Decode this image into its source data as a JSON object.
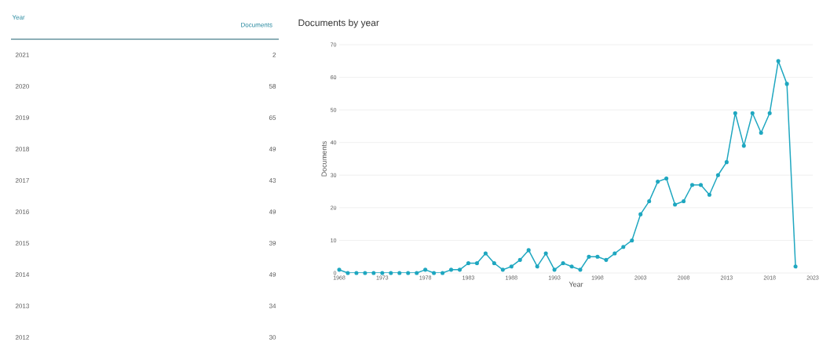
{
  "chart_data": [
    {
      "type": "heatmap",
      "ylabel": "Year",
      "categories": [
        "Documents"
      ],
      "y_categories": [
        "2021",
        "2020",
        "2019",
        "2018",
        "2017",
        "2016",
        "2015",
        "2014",
        "2013",
        "2012"
      ],
      "cells": [
        [
          2
        ],
        [
          58
        ],
        [
          65
        ],
        [
          49
        ],
        [
          43
        ],
        [
          49
        ],
        [
          39
        ],
        [
          49
        ],
        [
          34
        ],
        [
          30
        ]
      ],
      "data_labels": true
    },
    {
      "type": "line",
      "title": "Documents by year",
      "xlabel": "Year",
      "ylabel": "Documents",
      "x": [
        1968,
        1969,
        1970,
        1971,
        1972,
        1973,
        1974,
        1975,
        1976,
        1977,
        1978,
        1979,
        1980,
        1981,
        1982,
        1983,
        1984,
        1985,
        1986,
        1987,
        1988,
        1989,
        1990,
        1991,
        1992,
        1993,
        1994,
        1995,
        1996,
        1997,
        1998,
        1999,
        2000,
        2001,
        2002,
        2003,
        2004,
        2005,
        2006,
        2007,
        2008,
        2009,
        2010,
        2011,
        2012,
        2013,
        2014,
        2015,
        2016,
        2017,
        2018,
        2019,
        2020,
        2021
      ],
      "series": [
        {
          "color": "#1fa7c0",
          "values": [
            1,
            0,
            0,
            0,
            0,
            0,
            0,
            0,
            0,
            0,
            1,
            0,
            0,
            1,
            1,
            3,
            3,
            6,
            3,
            1,
            2,
            4,
            7,
            2,
            6,
            1,
            3,
            2,
            1,
            5,
            5,
            4,
            6,
            8,
            10,
            18,
            22,
            28,
            29,
            21,
            22,
            27,
            27,
            24,
            30,
            34,
            49,
            39,
            49,
            43,
            49,
            65,
            58,
            2
          ]
        }
      ],
      "xlim": [
        1968,
        2023
      ],
      "xticks": [
        1968,
        1973,
        1978,
        1983,
        1988,
        1993,
        1998,
        2003,
        2008,
        2013,
        2018,
        2023
      ],
      "ylim": [
        0,
        70
      ],
      "yticks": [
        0,
        10,
        20,
        30,
        40,
        50,
        60,
        70
      ],
      "grid": "y",
      "marker": "circle",
      "line_style": "solid"
    }
  ]
}
